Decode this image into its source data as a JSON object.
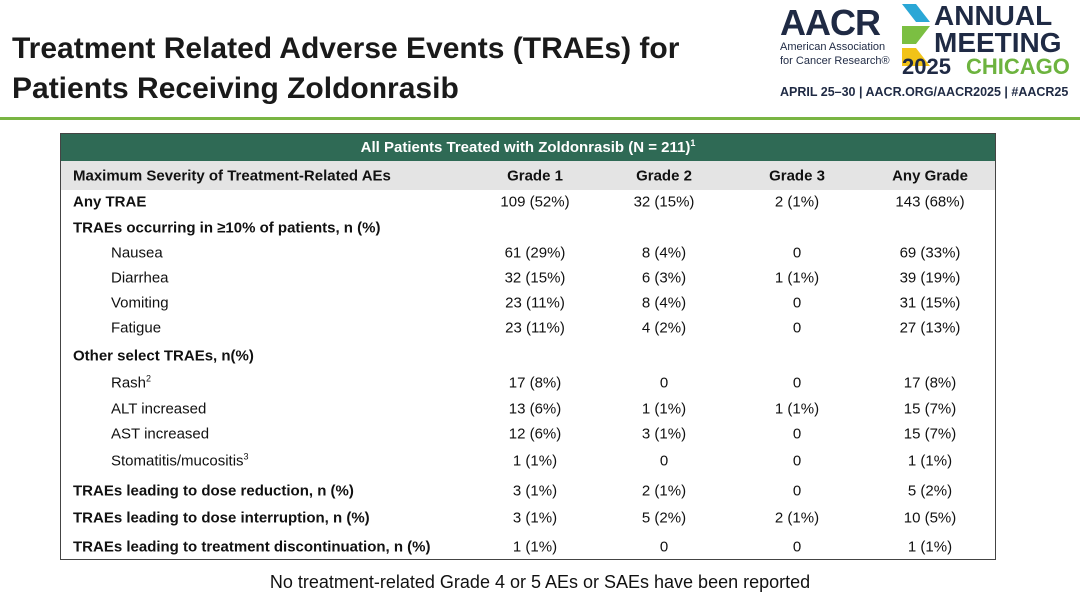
{
  "header": {
    "title": [
      "Treatment Related Adverse Events (TRAEs) for",
      "Patients Receiving Zoldonrasib"
    ]
  },
  "logo": {
    "org": "AACR",
    "org_name": [
      "American Association",
      "for Cancer Research®"
    ],
    "annual": "ANNUAL",
    "meeting": "MEETING",
    "year": "2025",
    "city": "CHICAGO",
    "info": "APRIL 25–30 | AACR.ORG/AACR2025 | #AACR25"
  },
  "table": {
    "title": "All Patients Treated with Zoldonrasib (N = 211)",
    "title_sup": "1",
    "columns": [
      "Maximum Severity of Treatment-Related AEs",
      "Grade 1",
      "Grade 2",
      "Grade 3",
      "Any Grade"
    ],
    "rows": [
      {
        "label": "Any TRAE",
        "values": [
          "109 (52%)",
          "32 (15%)",
          "2 (1%)",
          "143 (68%)"
        ]
      },
      {
        "label": "TRAEs occurring in  ≥10% of patients, n (%)",
        "items": [
          {
            "label": "Nausea",
            "values": [
              "61 (29%)",
              "8 (4%)",
              "0",
              "69 (33%)"
            ]
          },
          {
            "label": "Diarrhea",
            "values": [
              "32 (15%)",
              "6 (3%)",
              "1 (1%)",
              "39 (19%)"
            ]
          },
          {
            "label": "Vomiting",
            "values": [
              "23 (11%)",
              "8 (4%)",
              "0",
              "31 (15%)"
            ]
          },
          {
            "label": "Fatigue",
            "values": [
              "23 (11%)",
              "4 (2%)",
              "0",
              "27 (13%)"
            ]
          }
        ]
      },
      {
        "label": "Other select TRAEs, n(%)",
        "items": [
          {
            "label": "Rash",
            "sup": "2",
            "values": [
              "17 (8%)",
              "0",
              "0",
              "17 (8%)"
            ]
          },
          {
            "label": "ALT increased",
            "values": [
              "13 (6%)",
              "1 (1%)",
              "1 (1%)",
              "15 (7%)"
            ]
          },
          {
            "label": "AST increased",
            "values": [
              "12 (6%)",
              "3 (1%)",
              "0",
              "15 (7%)"
            ]
          },
          {
            "label": "Stomatitis/mucositis",
            "sup": "3",
            "values": [
              "1 (1%)",
              "0",
              "0",
              "1 (1%)"
            ]
          }
        ]
      },
      {
        "label": "TRAEs leading to dose reduction, n (%)",
        "values": [
          "3 (1%)",
          "2 (1%)",
          "0",
          "5 (2%)"
        ]
      },
      {
        "label": "TRAEs leading to dose interruption, n (%)",
        "values": [
          "3 (1%)",
          "5 (2%)",
          "2 (1%)",
          "10 (5%)"
        ]
      },
      {
        "label": "TRAEs leading to treatment discontinuation, n (%)",
        "values": [
          "1 (1%)",
          "0",
          "0",
          "1 (1%)"
        ]
      }
    ]
  },
  "footer": {
    "note": "No treatment-related Grade 4 or 5 AEs or SAEs have been reported"
  }
}
